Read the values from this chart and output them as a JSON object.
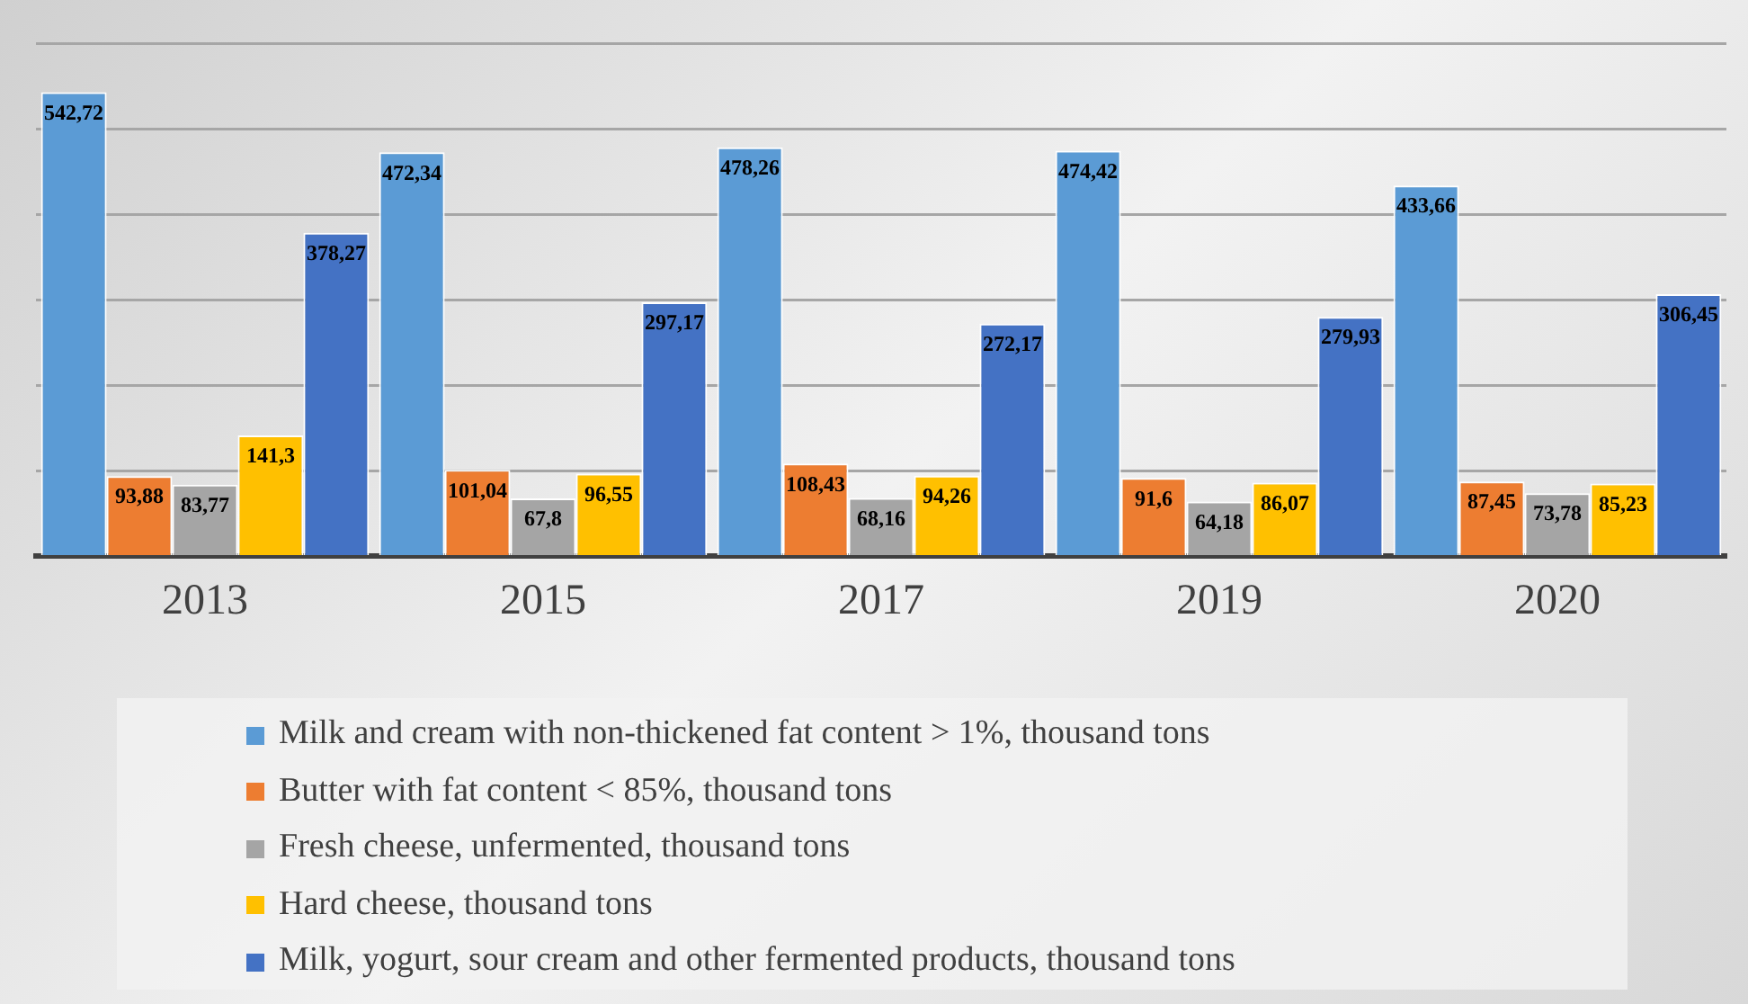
{
  "chart_data": {
    "type": "bar",
    "categories": [
      "2013",
      "2015",
      "2017",
      "2019",
      "2020"
    ],
    "series": [
      {
        "name": "Milk and cream with non-thickened fat content > 1%, thousand tons",
        "color": "#5b9bd5",
        "values": [
          542.72,
          472.34,
          478.26,
          474.42,
          433.66
        ],
        "value_labels": [
          "542,72",
          "472,34",
          "478,26",
          "474,42",
          "433,66"
        ]
      },
      {
        "name": "Butter with fat content < 85%, thousand tons",
        "color": "#ed7d31",
        "values": [
          93.88,
          101.04,
          108.43,
          91.6,
          87.45
        ],
        "value_labels": [
          "93,88",
          "101,04",
          "108,43",
          "91,6",
          "87,45"
        ]
      },
      {
        "name": "Fresh cheese, unfermented, thousand tons",
        "color": "#a5a5a5",
        "values": [
          83.77,
          67.8,
          68.16,
          64.18,
          73.78
        ],
        "value_labels": [
          "83,77",
          "67,8",
          "68,16",
          "64,18",
          "73,78"
        ]
      },
      {
        "name": "Hard cheese, thousand tons",
        "color": "#ffc000",
        "values": [
          141.3,
          96.55,
          94.26,
          86.07,
          85.23
        ],
        "value_labels": [
          "141,3",
          "96,55",
          "94,26",
          "86,07",
          "85,23"
        ]
      },
      {
        "name": "Milk, yogurt, sour cream and other fermented products, thousand tons",
        "color": "#4472c4",
        "values": [
          378.27,
          297.17,
          272.17,
          279.93,
          306.45
        ],
        "value_labels": [
          "378,27",
          "297,17",
          "272,17",
          "279,93",
          "306,45"
        ]
      }
    ],
    "ylim": [
      0,
      600
    ],
    "yticks": [
      {
        "value": 0,
        "label": null
      },
      {
        "value": 100,
        "label": null
      },
      {
        "value": 200,
        "label": null
      },
      {
        "value": 300,
        "label": null
      },
      {
        "value": 400,
        "label": null
      },
      {
        "value": 500,
        "label": null
      },
      {
        "value": 600,
        "label": null
      }
    ],
    "grid": "y",
    "legend": "bottom",
    "tick_labels": "x"
  }
}
